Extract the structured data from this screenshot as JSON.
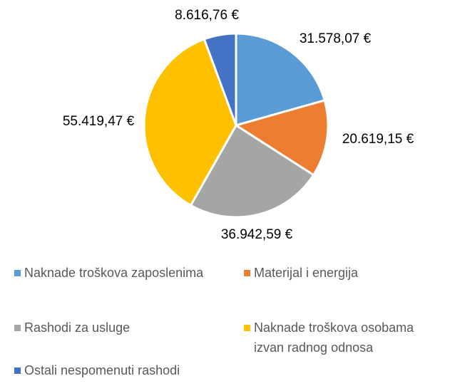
{
  "chart_data": {
    "type": "pie",
    "categories": [
      "Naknade troškova zaposlenima",
      "Materijal i energija",
      "Rashodi za usluge",
      "Naknade troškova osobama izvan radnog odnosa",
      "Ostali nespomenuti rashodi"
    ],
    "values": [
      31578.07,
      20619.15,
      36942.59,
      55419.47,
      8616.76
    ],
    "value_labels": [
      "31.578,07 €",
      "20.619,15 €",
      "36.942,59 €",
      "55.419,47 €",
      "8.616,76 €"
    ],
    "colors": [
      "#5b9bd5",
      "#ed7d31",
      "#a5a5a5",
      "#ffc000",
      "#4472c4"
    ],
    "legend": "bottom"
  }
}
